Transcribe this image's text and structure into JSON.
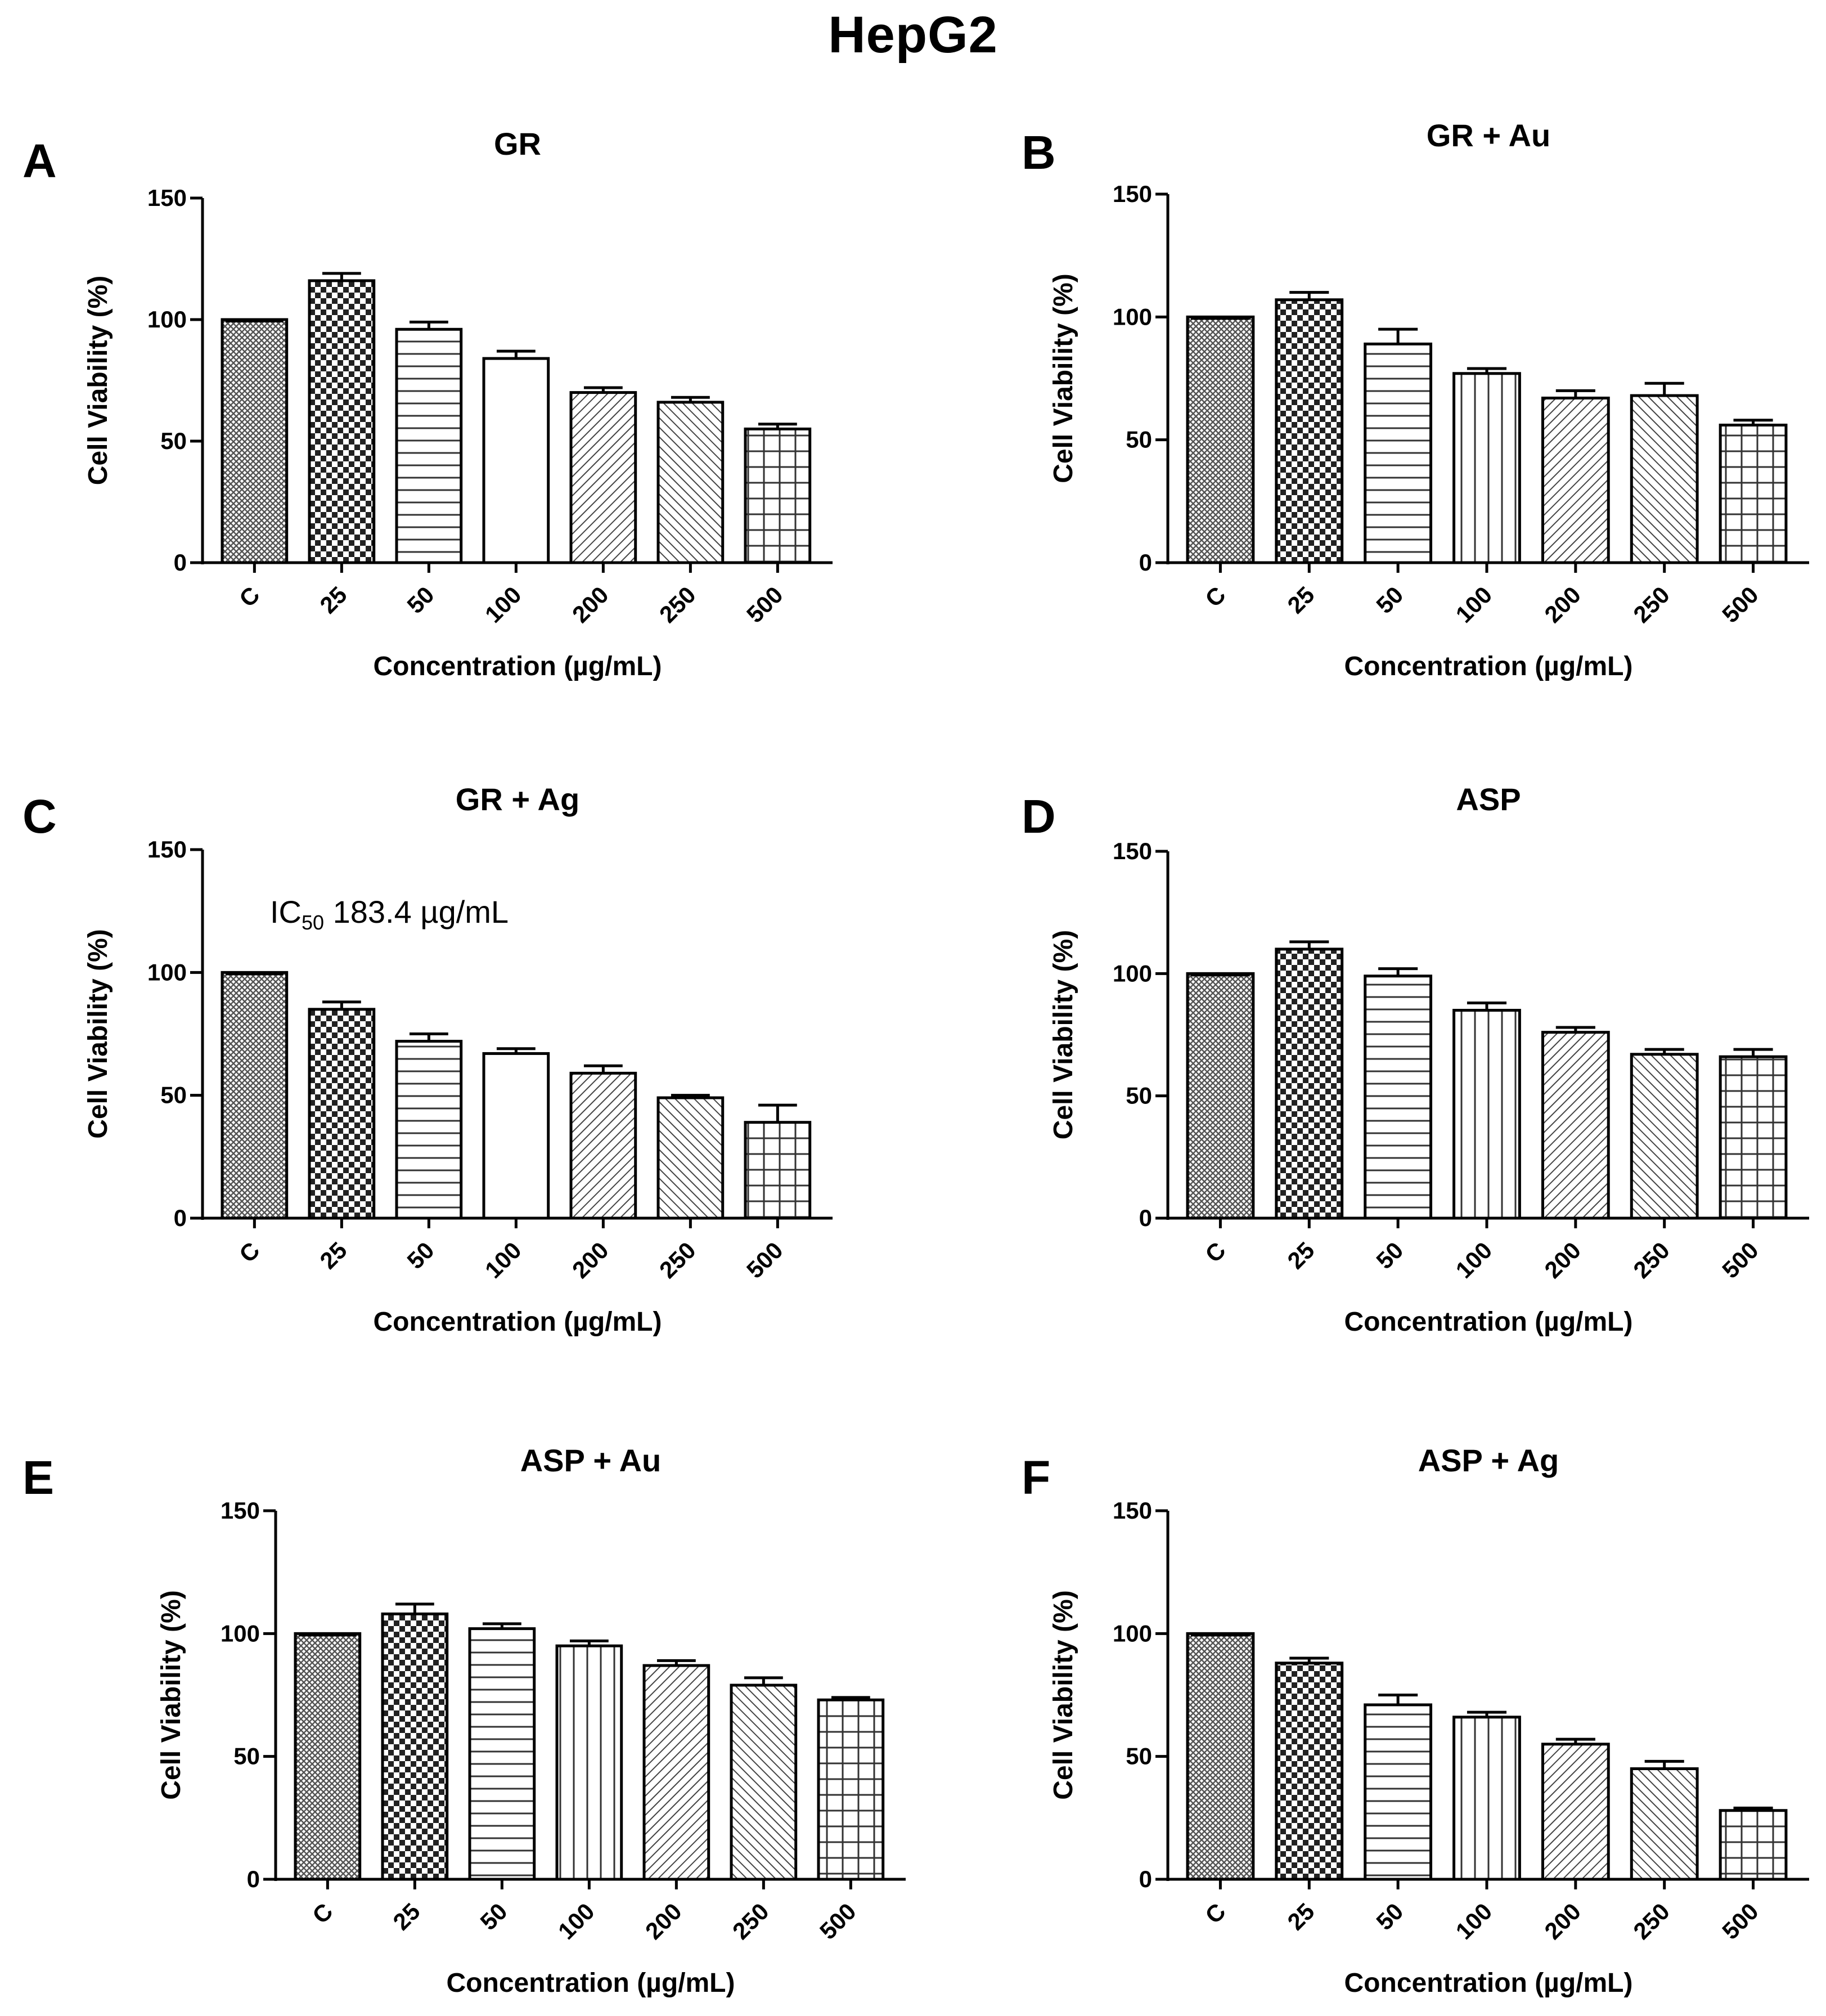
{
  "figure": {
    "title": "HepG2"
  },
  "chart_data": [
    {
      "type": "bar",
      "panel": "A",
      "title": "GR",
      "xlabel": "Concentration (µg/mL)",
      "ylabel": "Cell Viability (%)",
      "ylim": [
        0,
        150
      ],
      "yticks": [
        0,
        50,
        100,
        150
      ],
      "categories": [
        "C",
        "25",
        "50",
        "100",
        "200",
        "250",
        "500"
      ],
      "values": [
        100,
        116,
        96,
        84,
        70,
        66,
        55
      ],
      "errors": [
        0,
        3,
        3,
        3,
        2,
        2,
        2
      ],
      "annotation": ""
    },
    {
      "type": "bar",
      "panel": "B",
      "title": "GR + Au",
      "xlabel": "Concentration (µg/mL)",
      "ylabel": "Cell Viability (%)",
      "ylim": [
        0,
        150
      ],
      "yticks": [
        0,
        50,
        100,
        150
      ],
      "categories": [
        "C",
        "25",
        "50",
        "100",
        "200",
        "250",
        "500"
      ],
      "values": [
        100,
        107,
        89,
        77,
        67,
        68,
        56
      ],
      "errors": [
        0,
        3,
        6,
        2,
        3,
        5,
        2
      ],
      "annotation": ""
    },
    {
      "type": "bar",
      "panel": "C",
      "title": "GR + Ag",
      "xlabel": "Concentration (µg/mL)",
      "ylabel": "Cell Viability (%)",
      "ylim": [
        0,
        150
      ],
      "yticks": [
        0,
        50,
        100,
        150
      ],
      "categories": [
        "C",
        "25",
        "50",
        "100",
        "200",
        "250",
        "500"
      ],
      "values": [
        100,
        85,
        72,
        67,
        59,
        49,
        39
      ],
      "errors": [
        0,
        3,
        3,
        2,
        3,
        1,
        7
      ],
      "annotation": "IC",
      "annotation_sub": "50",
      "annotation_rest": " 183.4 µg/mL"
    },
    {
      "type": "bar",
      "panel": "D",
      "title": "ASP",
      "xlabel": "Concentration (µg/mL)",
      "ylabel": "Cell Viability (%)",
      "ylim": [
        0,
        150
      ],
      "yticks": [
        0,
        50,
        100,
        150
      ],
      "categories": [
        "C",
        "25",
        "50",
        "100",
        "200",
        "250",
        "500"
      ],
      "values": [
        100,
        110,
        99,
        85,
        76,
        67,
        66
      ],
      "errors": [
        0,
        3,
        3,
        3,
        2,
        2,
        3
      ],
      "annotation": ""
    },
    {
      "type": "bar",
      "panel": "E",
      "title": "ASP + Au",
      "xlabel": "Concentration (µg/mL)",
      "ylabel": "Cell Viability (%)",
      "ylim": [
        0,
        150
      ],
      "yticks": [
        0,
        50,
        100,
        150
      ],
      "categories": [
        "C",
        "25",
        "50",
        "100",
        "200",
        "250",
        "500"
      ],
      "values": [
        100,
        108,
        102,
        95,
        87,
        79,
        73
      ],
      "errors": [
        0,
        4,
        2,
        2,
        2,
        3,
        1
      ],
      "annotation": ""
    },
    {
      "type": "bar",
      "panel": "F",
      "title": "ASP + Ag",
      "xlabel": "Concentration (µg/mL)",
      "ylabel": "Cell Viability (%)",
      "ylim": [
        0,
        150
      ],
      "yticks": [
        0,
        50,
        100,
        150
      ],
      "categories": [
        "C",
        "25",
        "50",
        "100",
        "200",
        "250",
        "500"
      ],
      "values": [
        100,
        88,
        71,
        66,
        55,
        45,
        28
      ],
      "errors": [
        0,
        2,
        4,
        2,
        2,
        3,
        1
      ],
      "annotation": ""
    }
  ]
}
